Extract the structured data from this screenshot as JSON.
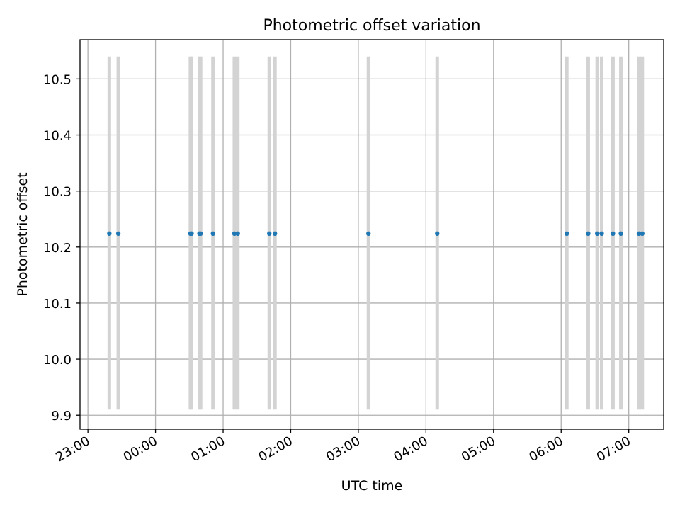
{
  "chart_data": {
    "type": "scatter",
    "title": "Photometric offset variation",
    "xlabel": "UTC time",
    "ylabel": "Photometric offset",
    "x_axis": {
      "kind": "time",
      "start": "23:00",
      "range": [
        "22:53",
        "07:31"
      ],
      "ticks": [
        "23:00",
        "00:00",
        "01:00",
        "02:00",
        "03:00",
        "04:00",
        "05:00",
        "06:00",
        "07:00"
      ]
    },
    "ylim": [
      9.875,
      10.57
    ],
    "yticks": [
      9.9,
      10.0,
      10.1,
      10.2,
      10.3,
      10.4,
      10.5
    ],
    "grid": true,
    "colors": {
      "points": "#1f77b4",
      "error_bars": "#d3d3d3",
      "grid": "#b0b0b0"
    },
    "error_bar_range": [
      9.91,
      10.54
    ],
    "series": [
      {
        "x": [
          "23:19",
          "23:27",
          "00:31",
          "00:32",
          "00:39",
          "00:40",
          "00:51",
          "01:10",
          "01:13",
          "01:41",
          "01:46",
          "03:09",
          "04:10",
          "06:05",
          "06:24",
          "06:32",
          "06:36",
          "06:46",
          "06:53",
          "07:09",
          "07:12"
        ],
        "y": [
          10.224,
          10.224,
          10.224,
          10.224,
          10.224,
          10.224,
          10.224,
          10.224,
          10.224,
          10.224,
          10.224,
          10.224,
          10.224,
          10.224,
          10.224,
          10.224,
          10.224,
          10.224,
          10.224,
          10.224,
          10.224
        ]
      }
    ]
  }
}
